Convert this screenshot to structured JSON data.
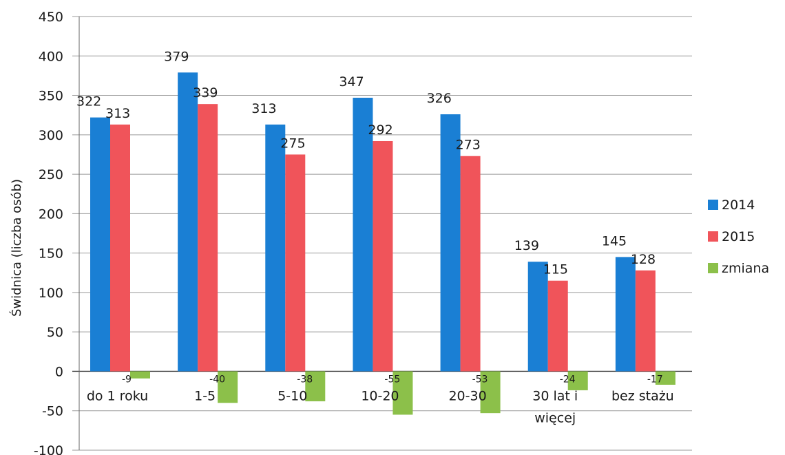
{
  "chart_data": {
    "type": "bar",
    "ylabel": "Świdnica (liczba osób)",
    "ylim": [
      -100,
      450
    ],
    "yticks": [
      450,
      400,
      350,
      300,
      250,
      200,
      150,
      100,
      50,
      0,
      -50,
      -100
    ],
    "grid": true,
    "legend_position": "right",
    "categories": [
      [
        "do 1 roku"
      ],
      [
        "1-5"
      ],
      [
        "5-10"
      ],
      [
        "10-20"
      ],
      [
        "20-30"
      ],
      [
        "30 lat i",
        "więcej"
      ],
      [
        "bez stażu"
      ]
    ],
    "series": [
      {
        "name": "2014",
        "color": "#1a7fd4",
        "values": [
          322,
          379,
          313,
          347,
          326,
          139,
          145
        ]
      },
      {
        "name": "2015",
        "color": "#f0545a",
        "values": [
          313,
          339,
          275,
          292,
          273,
          115,
          128
        ]
      },
      {
        "name": "zmiana",
        "color": "#8cc04a",
        "values": [
          -9,
          -40,
          -38,
          -55,
          -53,
          -24,
          -17
        ]
      }
    ]
  }
}
